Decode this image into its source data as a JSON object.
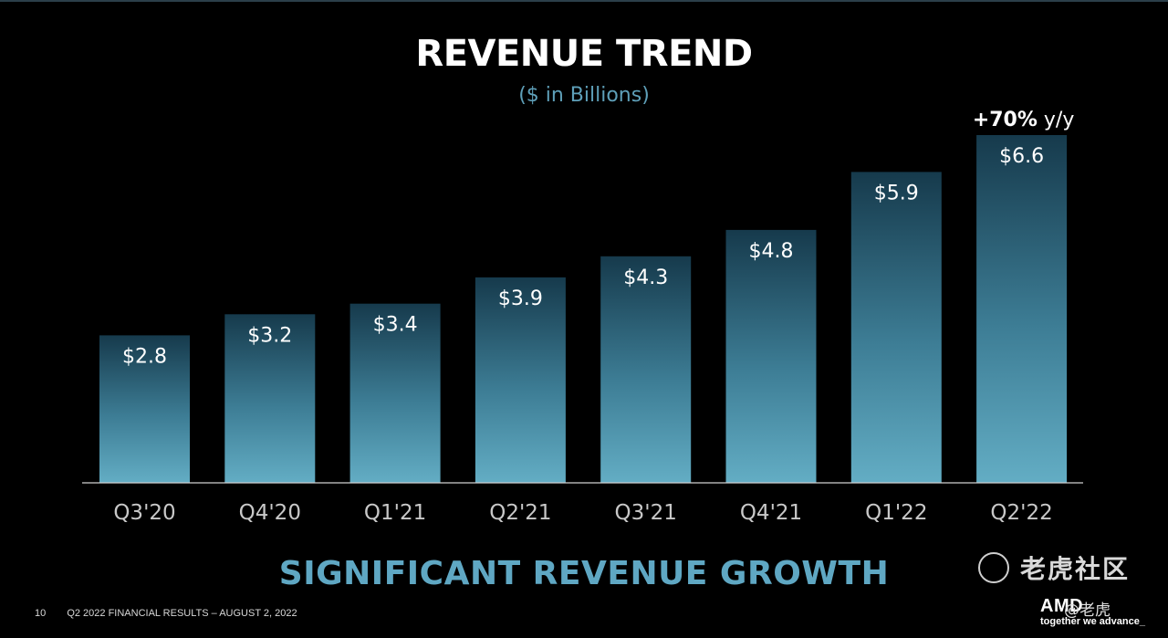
{
  "slide": {
    "title": "REVENUE TREND",
    "subtitle": "($ in Billions)",
    "headline": "SIGNIFICANT REVENUE GROWTH",
    "footer_page": "10",
    "footer_text": "Q2 2022 FINANCIAL RESULTS – AUGUST 2, 2022",
    "logo_text": "AMD",
    "logo_tagline": "together we advance_",
    "watermark_text": "老虎社区",
    "watermark_small": "@老虎"
  },
  "colors": {
    "bar_top": "#163a4c",
    "bar_bottom": "#63adc4",
    "axis": "#cfcfcf",
    "tick_label": "#c8c8c8",
    "value_label": "#ffffff",
    "subtitle": "#5e9fb8",
    "headline": "#5fa7c3"
  },
  "chart_data": {
    "type": "bar",
    "title": "REVENUE TREND",
    "subtitle": "($ in Billions)",
    "categories": [
      "Q3'20",
      "Q4'20",
      "Q1'21",
      "Q2'21",
      "Q3'21",
      "Q4'21",
      "Q1'22",
      "Q2'22"
    ],
    "values": [
      2.8,
      3.2,
      3.4,
      3.9,
      4.3,
      4.8,
      5.9,
      6.6
    ],
    "value_labels": [
      "$2.8",
      "$3.2",
      "$3.4",
      "$3.9",
      "$4.3",
      "$4.8",
      "$5.9",
      "$6.6"
    ],
    "ylim": [
      0,
      6.6
    ],
    "grid": false,
    "annotation": {
      "category": "Q2'22",
      "bold": "+70%",
      "rest": " y/y"
    }
  }
}
